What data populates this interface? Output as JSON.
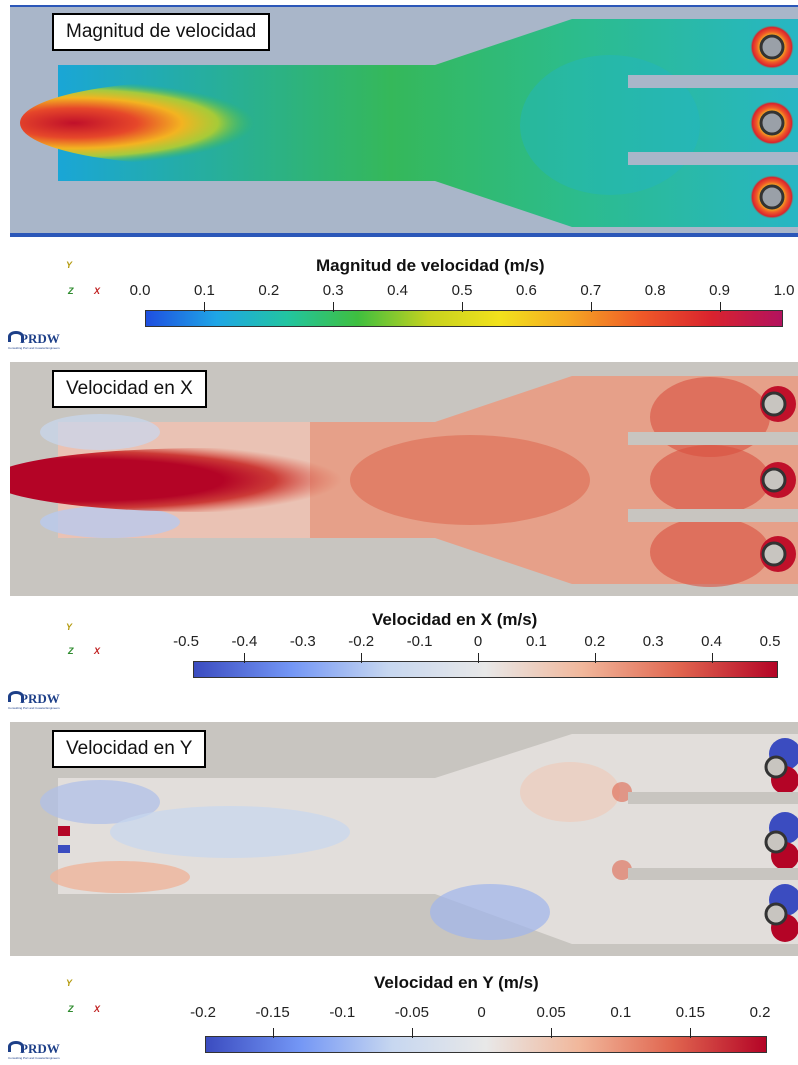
{
  "panels": [
    {
      "id": "magnitude",
      "label": "Magnitud de velocidad",
      "colorbar_title": "Magnitud de velocidad (m/s)",
      "ticks": [
        "0.0",
        "0.1",
        "0.2",
        "0.3",
        "0.4",
        "0.5",
        "0.6",
        "0.7",
        "0.8",
        "0.9",
        "1.0"
      ],
      "range": [
        0.0,
        1.0
      ],
      "colormap": [
        "#1f4fe0",
        "#1fa6e6",
        "#22c5a0",
        "#3fbf3f",
        "#c6d21f",
        "#f2e21c",
        "#f5a623",
        "#ef5a28",
        "#d9232e",
        "#b3125e"
      ]
    },
    {
      "id": "vx",
      "label": "Velocidad en X",
      "colorbar_title": "Velocidad en X (m/s)",
      "ticks": [
        "-0.5",
        "-0.4",
        "-0.3",
        "-0.2",
        "-0.1",
        "0",
        "0.1",
        "0.2",
        "0.3",
        "0.4",
        "0.5"
      ],
      "range": [
        -0.5,
        0.5
      ],
      "colormap": [
        "#3b4cc0",
        "#7396f5",
        "#c7d7f0",
        "#e8e8e8",
        "#f1b79b",
        "#e0654f",
        "#b40426"
      ]
    },
    {
      "id": "vy",
      "label": "Velocidad en Y",
      "colorbar_title": "Velocidad en Y (m/s)",
      "ticks": [
        "-0.2",
        "-0.15",
        "-0.1",
        "-0.05",
        "0",
        "0.05",
        "0.1",
        "0.15",
        "0.2"
      ],
      "range": [
        -0.2,
        0.2
      ],
      "colormap": [
        "#3b4cc0",
        "#7396f5",
        "#c7d7f0",
        "#e8e8e8",
        "#f1b79b",
        "#e0654f",
        "#b40426"
      ]
    }
  ],
  "axes_labels": {
    "y": "Y",
    "z": "Z",
    "x": "X"
  },
  "logo": {
    "name": "PRDW",
    "tagline": "Consulting Port and Coastal Engineers"
  },
  "colors": {
    "solid_magnitude": "#a9b6c9",
    "solid_components": "#c8c5c0",
    "frame": "#2b57b8"
  }
}
